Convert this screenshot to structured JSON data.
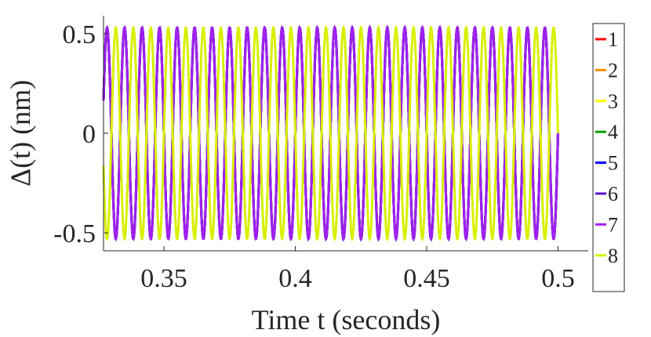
{
  "chart_data": {
    "type": "line",
    "xlabel": "Time t  (seconds)",
    "ylabel": "Δ(t)  (nm)",
    "xlim": [
      0.327,
      0.5115
    ],
    "ylim": [
      -0.59,
      0.59
    ],
    "x_ticks": [
      0.35,
      0.4,
      0.45,
      0.5
    ],
    "x_tick_labels": [
      "0.35",
      "0.4",
      "0.45",
      "0.5"
    ],
    "y_ticks": [
      -0.5,
      0,
      0.5
    ],
    "y_tick_labels": [
      "-0.5",
      "0",
      "0.5"
    ],
    "grid": false,
    "legend_position": "right",
    "signal": {
      "t_start": 0.327,
      "t_end": 0.5,
      "frequency_hz": 150,
      "amplitude": 0.53
    },
    "series": [
      {
        "name": "1",
        "color": "#ff0000",
        "phase_deg": 0
      },
      {
        "name": "2",
        "color": "#ff8c00",
        "phase_deg": 0
      },
      {
        "name": "3",
        "color": "#ffff00",
        "phase_deg": 0
      },
      {
        "name": "4",
        "color": "#00a000",
        "phase_deg": 0
      },
      {
        "name": "5",
        "color": "#0000ff",
        "phase_deg": 0
      },
      {
        "name": "6",
        "color": "#5a10d0",
        "phase_deg": 0
      },
      {
        "name": "7",
        "color": "#a020f0",
        "phase_deg": 0
      },
      {
        "name": "8",
        "color": "#d8f000",
        "phase_deg": 180
      }
    ]
  }
}
